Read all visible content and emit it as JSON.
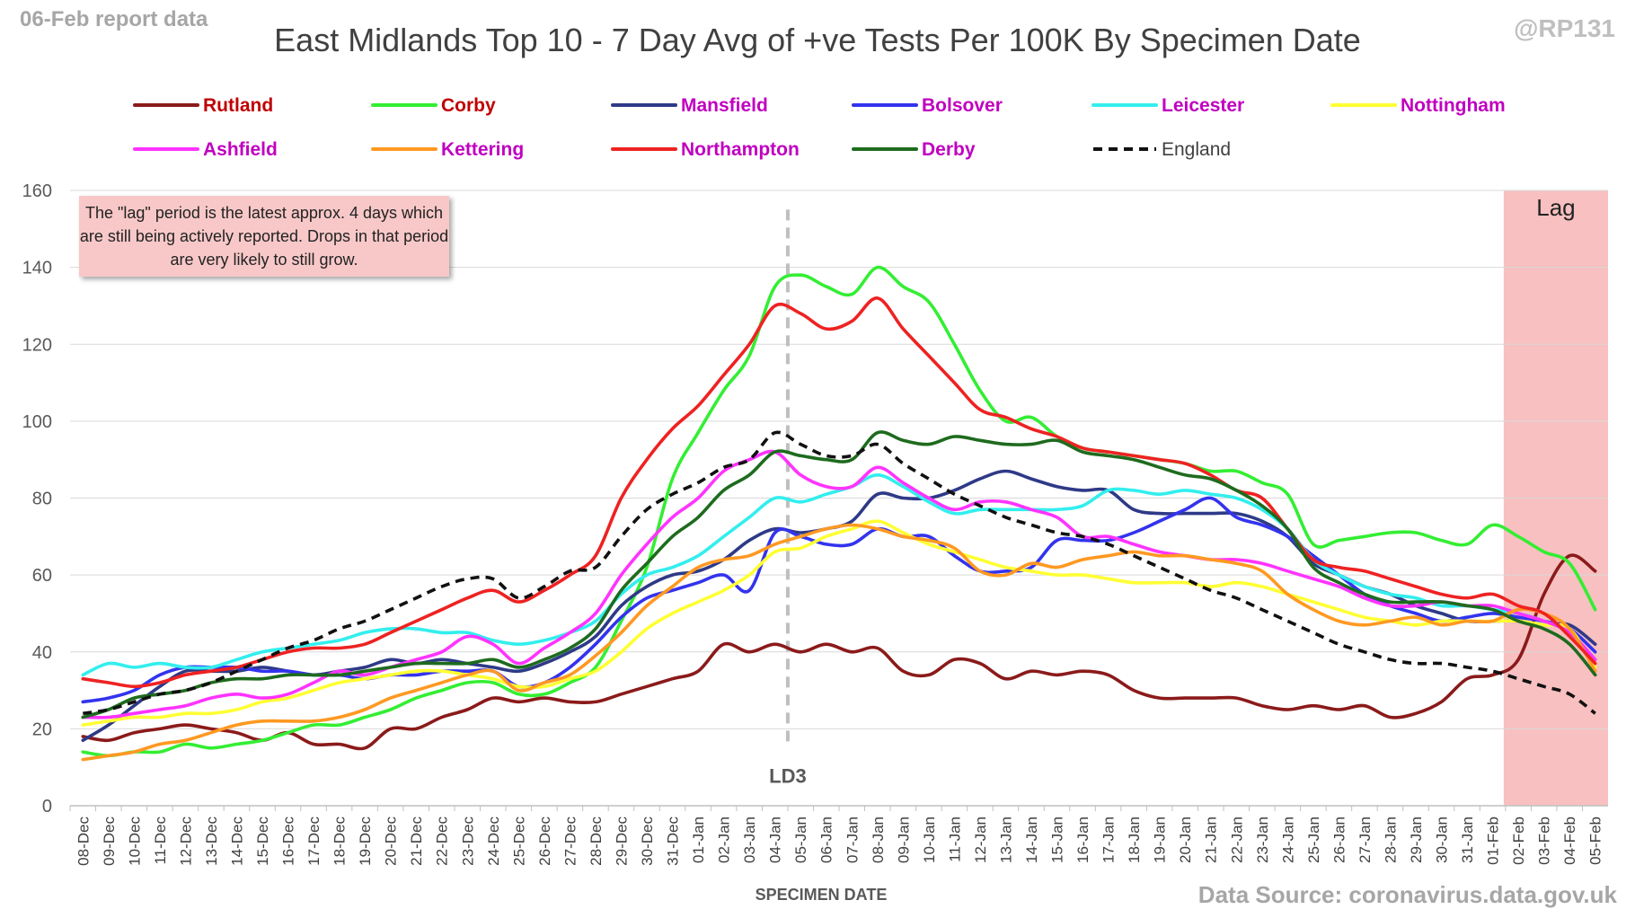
{
  "header": {
    "report_date": "06-Feb report data",
    "handle": "@RP131",
    "source": "Data Source: coronavirus.data.gov.uk"
  },
  "note": "The \"lag\" period is the latest approx. 4 days which are still being actively reported.  Drops in that period are very likely to still grow.",
  "annotations": {
    "lag_label": "Lag",
    "ld3_label": "LD3",
    "ld3_date": "05-Jan",
    "lag_start": "02-Feb"
  },
  "chart_data": {
    "type": "line",
    "title": "East Midlands Top 10 - 7 Day Avg of +ve Tests Per 100K By Specimen Date",
    "xlabel": "SPECIMEN DATE",
    "ylabel": "",
    "ylim": [
      0,
      160
    ],
    "yticks": [
      0,
      20,
      40,
      60,
      80,
      100,
      120,
      140,
      160
    ],
    "grid": true,
    "legend_position": "top",
    "categories": [
      "08-Dec",
      "09-Dec",
      "10-Dec",
      "11-Dec",
      "12-Dec",
      "13-Dec",
      "14-Dec",
      "15-Dec",
      "16-Dec",
      "17-Dec",
      "18-Dec",
      "19-Dec",
      "20-Dec",
      "21-Dec",
      "22-Dec",
      "23-Dec",
      "24-Dec",
      "25-Dec",
      "26-Dec",
      "27-Dec",
      "28-Dec",
      "29-Dec",
      "30-Dec",
      "31-Dec",
      "01-Jan",
      "02-Jan",
      "03-Jan",
      "04-Jan",
      "05-Jan",
      "06-Jan",
      "07-Jan",
      "08-Jan",
      "09-Jan",
      "10-Jan",
      "11-Jan",
      "12-Jan",
      "13-Jan",
      "14-Jan",
      "15-Jan",
      "16-Jan",
      "17-Jan",
      "18-Jan",
      "19-Jan",
      "20-Jan",
      "21-Jan",
      "22-Jan",
      "23-Jan",
      "24-Jan",
      "25-Jan",
      "26-Jan",
      "27-Jan",
      "28-Jan",
      "29-Jan",
      "30-Jan",
      "31-Jan",
      "01-Feb",
      "02-Feb",
      "03-Feb",
      "04-Feb",
      "05-Feb"
    ],
    "series": [
      {
        "name": "Rutland",
        "color": "#8b1a1a",
        "dash": false,
        "label_color": "#c00000",
        "values": [
          18,
          17,
          19,
          20,
          21,
          20,
          19,
          17,
          19,
          16,
          16,
          15,
          20,
          20,
          23,
          25,
          28,
          27,
          28,
          27,
          27,
          29,
          31,
          33,
          35,
          42,
          40,
          42,
          40,
          42,
          40,
          41,
          35,
          34,
          38,
          37,
          33,
          35,
          34,
          35,
          34,
          30,
          28,
          28,
          28,
          28,
          26,
          25,
          26,
          25,
          26,
          23,
          24,
          27,
          33,
          34,
          38,
          55,
          65,
          61
        ]
      },
      {
        "name": "Corby",
        "color": "#33ee33",
        "dash": false,
        "label_color": "#c00000",
        "values": [
          14,
          13,
          14,
          14,
          16,
          15,
          16,
          17,
          19,
          21,
          21,
          23,
          25,
          28,
          30,
          32,
          32,
          29,
          29,
          32,
          36,
          48,
          62,
          85,
          97,
          108,
          117,
          135,
          138,
          135,
          133,
          140,
          135,
          131,
          120,
          108,
          100,
          101,
          96,
          93,
          92,
          91,
          90,
          89,
          87,
          87,
          84,
          81,
          68,
          69,
          70,
          71,
          71,
          69,
          68,
          73,
          70,
          66,
          63,
          51
        ]
      },
      {
        "name": "Mansfield",
        "color": "#2e3a87",
        "dash": false,
        "label_color": "#c000c0",
        "values": [
          17,
          21,
          26,
          31,
          35,
          35,
          35,
          36,
          35,
          34,
          35,
          36,
          38,
          37,
          38,
          37,
          36,
          35,
          37,
          40,
          44,
          52,
          57,
          60,
          61,
          64,
          69,
          72,
          71,
          72,
          74,
          81,
          80,
          80,
          82,
          85,
          87,
          85,
          83,
          82,
          82,
          77,
          76,
          76,
          76,
          76,
          74,
          70,
          63,
          60,
          57,
          55,
          52,
          50,
          48,
          48,
          48,
          47,
          47,
          42
        ]
      },
      {
        "name": "Bolsover",
        "color": "#3333ee",
        "dash": false,
        "label_color": "#c000c0",
        "values": [
          27,
          28,
          30,
          34,
          36,
          36,
          36,
          35,
          35,
          34,
          34,
          33,
          34,
          34,
          35,
          35,
          35,
          31,
          32,
          36,
          42,
          49,
          54,
          56,
          58,
          60,
          56,
          71,
          70,
          68,
          68,
          72,
          70,
          70,
          65,
          61,
          61,
          62,
          69,
          69,
          69,
          71,
          74,
          77,
          80,
          75,
          73,
          70,
          65,
          60,
          55,
          52,
          50,
          48,
          49,
          50,
          49,
          48,
          46,
          40
        ]
      },
      {
        "name": "Leicester",
        "color": "#33eeee",
        "dash": false,
        "label_color": "#c000c0",
        "values": [
          34,
          37,
          36,
          37,
          36,
          36,
          38,
          40,
          41,
          42,
          43,
          45,
          46,
          46,
          45,
          45,
          43,
          42,
          43,
          45,
          48,
          55,
          60,
          62,
          65,
          70,
          75,
          80,
          79,
          81,
          83,
          86,
          83,
          79,
          76,
          77,
          77,
          77,
          77,
          78,
          82,
          82,
          81,
          82,
          81,
          80,
          77,
          72,
          64,
          60,
          57,
          55,
          54,
          52,
          52,
          51,
          50,
          48,
          45,
          38
        ]
      },
      {
        "name": "Nottingham",
        "color": "#ffff33",
        "dash": false,
        "label_color": "#c000c0",
        "values": [
          21,
          22,
          23,
          23,
          24,
          24,
          25,
          27,
          28,
          30,
          32,
          33,
          34,
          35,
          35,
          34,
          33,
          31,
          31,
          33,
          35,
          40,
          46,
          50,
          53,
          56,
          60,
          66,
          67,
          70,
          72,
          74,
          71,
          68,
          66,
          64,
          62,
          61,
          60,
          60,
          59,
          58,
          58,
          58,
          57,
          58,
          57,
          55,
          53,
          51,
          49,
          48,
          47,
          48,
          48,
          48,
          48,
          47,
          46,
          36
        ]
      },
      {
        "name": "Ashfield",
        "color": "#ff33ff",
        "dash": false,
        "label_color": "#c000c0",
        "values": [
          23,
          23,
          24,
          25,
          26,
          28,
          29,
          28,
          29,
          32,
          35,
          34,
          36,
          38,
          40,
          44,
          42,
          37,
          41,
          45,
          50,
          60,
          68,
          75,
          80,
          87,
          90,
          92,
          86,
          83,
          83,
          88,
          84,
          80,
          77,
          79,
          79,
          77,
          75,
          70,
          70,
          68,
          66,
          65,
          64,
          64,
          63,
          61,
          59,
          57,
          54,
          52,
          52,
          53,
          52,
          52,
          50,
          48,
          45,
          38
        ]
      },
      {
        "name": "Kettering",
        "color": "#ff9922",
        "dash": false,
        "label_color": "#c000c0",
        "values": [
          12,
          13,
          14,
          16,
          17,
          19,
          21,
          22,
          22,
          22,
          23,
          25,
          28,
          30,
          32,
          34,
          35,
          30,
          32,
          34,
          39,
          45,
          52,
          57,
          62,
          64,
          65,
          68,
          70,
          72,
          73,
          72,
          70,
          69,
          67,
          61,
          60,
          63,
          62,
          64,
          65,
          66,
          65,
          65,
          64,
          63,
          61,
          55,
          51,
          48,
          47,
          48,
          49,
          47,
          48,
          48,
          51,
          50,
          46,
          35
        ]
      },
      {
        "name": "Northampton",
        "color": "#ee2222",
        "dash": false,
        "label_color": "#c000c0",
        "values": [
          33,
          32,
          31,
          32,
          34,
          35,
          36,
          38,
          40,
          41,
          41,
          42,
          45,
          48,
          51,
          54,
          56,
          53,
          56,
          60,
          65,
          80,
          90,
          98,
          104,
          112,
          120,
          130,
          128,
          124,
          126,
          132,
          124,
          117,
          110,
          103,
          101,
          98,
          96,
          93,
          92,
          91,
          90,
          89,
          86,
          82,
          80,
          72,
          64,
          62,
          61,
          59,
          57,
          55,
          54,
          55,
          52,
          50,
          44,
          37
        ]
      },
      {
        "name": "Derby",
        "color": "#1e6b1e",
        "dash": false,
        "label_color": "#c000c0",
        "values": [
          23,
          25,
          28,
          29,
          30,
          32,
          33,
          33,
          34,
          34,
          34,
          35,
          36,
          37,
          37,
          37,
          38,
          36,
          38,
          41,
          46,
          56,
          63,
          70,
          75,
          82,
          86,
          92,
          91,
          90,
          90,
          97,
          95,
          94,
          96,
          95,
          94,
          94,
          95,
          92,
          91,
          90,
          88,
          86,
          85,
          82,
          78,
          72,
          62,
          58,
          55,
          53,
          53,
          53,
          52,
          51,
          48,
          46,
          42,
          34
        ]
      },
      {
        "name": "England",
        "color": "#111111",
        "dash": true,
        "label_color": "#404040",
        "values": [
          24,
          25,
          27,
          29,
          30,
          32,
          35,
          38,
          41,
          43,
          46,
          48,
          51,
          54,
          57,
          59,
          59,
          54,
          57,
          61,
          62,
          70,
          77,
          81,
          84,
          88,
          90,
          97,
          94,
          91,
          91,
          94,
          89,
          85,
          81,
          78,
          75,
          73,
          71,
          70,
          68,
          65,
          62,
          59,
          56,
          54,
          51,
          48,
          45,
          42,
          40,
          38,
          37,
          37,
          36,
          35,
          33,
          31,
          29,
          24
        ]
      }
    ]
  }
}
